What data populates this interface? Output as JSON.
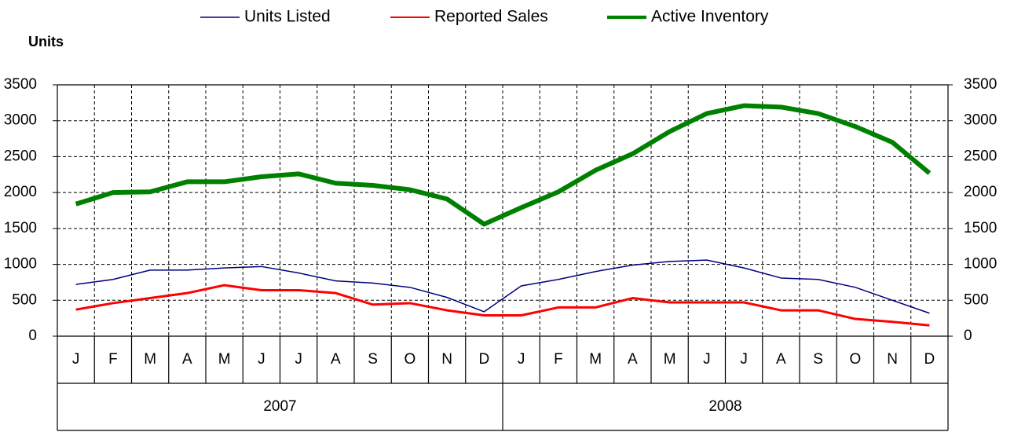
{
  "chart_data": {
    "type": "line",
    "y_label": "Units",
    "categories": [
      "J",
      "F",
      "M",
      "A",
      "M",
      "J",
      "J",
      "A",
      "S",
      "O",
      "N",
      "D",
      "J",
      "F",
      "M",
      "A",
      "M",
      "J",
      "J",
      "A",
      "S",
      "O",
      "N",
      "D"
    ],
    "years": [
      "2007",
      "2008"
    ],
    "series": [
      {
        "name": "Units Listed",
        "color": "#000080",
        "width": 1.5,
        "values": [
          720,
          790,
          920,
          920,
          950,
          970,
          880,
          770,
          740,
          680,
          540,
          340,
          700,
          790,
          900,
          990,
          1040,
          1060,
          950,
          810,
          790,
          680,
          500,
          320
        ]
      },
      {
        "name": "Reported Sales",
        "color": "#ff0000",
        "width": 3,
        "values": [
          370,
          460,
          530,
          600,
          710,
          640,
          640,
          600,
          440,
          460,
          360,
          290,
          290,
          400,
          400,
          530,
          470,
          470,
          470,
          360,
          360,
          240,
          200,
          150
        ]
      },
      {
        "name": "Active Inventory",
        "color": "#008000",
        "width": 6,
        "values": [
          1840,
          2000,
          2010,
          2150,
          2150,
          2220,
          2260,
          2130,
          2100,
          2040,
          1910,
          1560,
          1790,
          2010,
          2310,
          2540,
          2850,
          3100,
          3210,
          3190,
          3100,
          2920,
          2700,
          2270
        ]
      }
    ],
    "ylim": [
      0,
      3500
    ],
    "yticks": [
      0,
      500,
      1000,
      1500,
      2000,
      2500,
      3000,
      3500
    ],
    "y2lim": [
      0,
      3500
    ],
    "y2ticks": [
      0,
      500,
      1000,
      1500,
      2000,
      2500,
      3000,
      3500
    ],
    "grid": true,
    "legend": "top"
  }
}
